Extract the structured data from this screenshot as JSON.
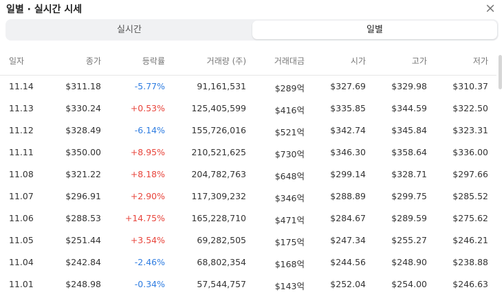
{
  "header": {
    "title": "일별 · 실시간 시세",
    "close": "×"
  },
  "tabs": [
    "실시간",
    "일별"
  ],
  "table": {
    "columns": [
      "일자",
      "종가",
      "등락률",
      "거래량 (주)",
      "거래대금",
      "시가",
      "고가",
      "저가"
    ],
    "rows": [
      [
        "11.14",
        "$311.18",
        "-5.77%",
        "91,161,531",
        "$289억",
        "$327.69",
        "$329.98",
        "$310.37"
      ],
      [
        "11.13",
        "$330.24",
        "+0.53%",
        "125,405,599",
        "$416억",
        "$335.85",
        "$344.59",
        "$322.50"
      ],
      [
        "11.12",
        "$328.49",
        "-6.14%",
        "155,726,016",
        "$521억",
        "$342.74",
        "$345.84",
        "$323.31"
      ],
      [
        "11.11",
        "$350.00",
        "+8.95%",
        "210,521,625",
        "$730억",
        "$346.30",
        "$358.64",
        "$336.00"
      ],
      [
        "11.08",
        "$321.22",
        "+8.18%",
        "204,782,763",
        "$648억",
        "$299.14",
        "$328.71",
        "$297.66"
      ],
      [
        "11.07",
        "$296.91",
        "+2.90%",
        "117,309,232",
        "$346억",
        "$288.89",
        "$299.75",
        "$285.52"
      ],
      [
        "11.06",
        "$288.53",
        "+14.75%",
        "165,228,710",
        "$471억",
        "$284.67",
        "$289.59",
        "$275.62"
      ],
      [
        "11.05",
        "$251.44",
        "+3.54%",
        "69,282,505",
        "$175억",
        "$247.34",
        "$255.27",
        "$246.21"
      ],
      [
        "11.04",
        "$242.84",
        "-2.46%",
        "68,802,354",
        "$168억",
        "$244.56",
        "$248.90",
        "$238.88"
      ],
      [
        "11.01",
        "$248.98",
        "-0.34%",
        "57,544,757",
        "$143억",
        "$252.04",
        "$254.00",
        "$246.63"
      ]
    ]
  }
}
